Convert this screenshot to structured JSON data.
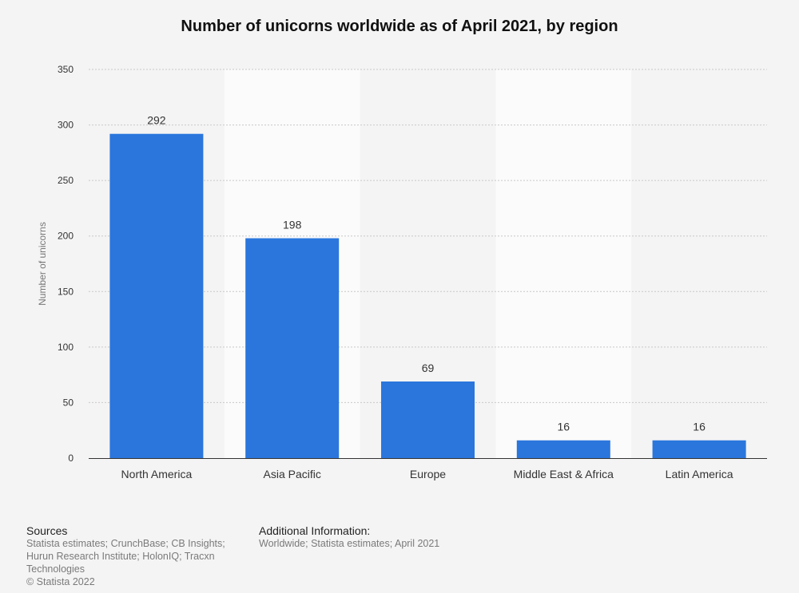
{
  "chart_data": {
    "type": "bar",
    "title": "Number of unicorns worldwide as of April 2021, by region",
    "xlabel": "",
    "ylabel": "Number of unicorns",
    "categories": [
      "North America",
      "Asia Pacific",
      "Europe",
      "Middle East & Africa",
      "Latin America"
    ],
    "values": [
      292,
      198,
      69,
      16,
      16
    ],
    "data_labels": [
      "292",
      "198",
      "69",
      "16",
      "16"
    ],
    "ylim": [
      0,
      350
    ],
    "yticks": [
      0,
      50,
      100,
      150,
      200,
      250,
      300,
      350
    ],
    "grid": true,
    "legend": "none",
    "bar_color": "#2a76dd"
  },
  "footer": {
    "sources_heading": "Sources",
    "sources_lines": [
      "Statista estimates; CrunchBase; CB Insights;",
      "Hurun Research Institute; HolonIQ; Tracxn",
      "Technologies",
      "© Statista 2022"
    ],
    "info_heading": "Additional Information:",
    "info_lines": [
      "Worldwide; Statista estimates; April 2021"
    ]
  }
}
